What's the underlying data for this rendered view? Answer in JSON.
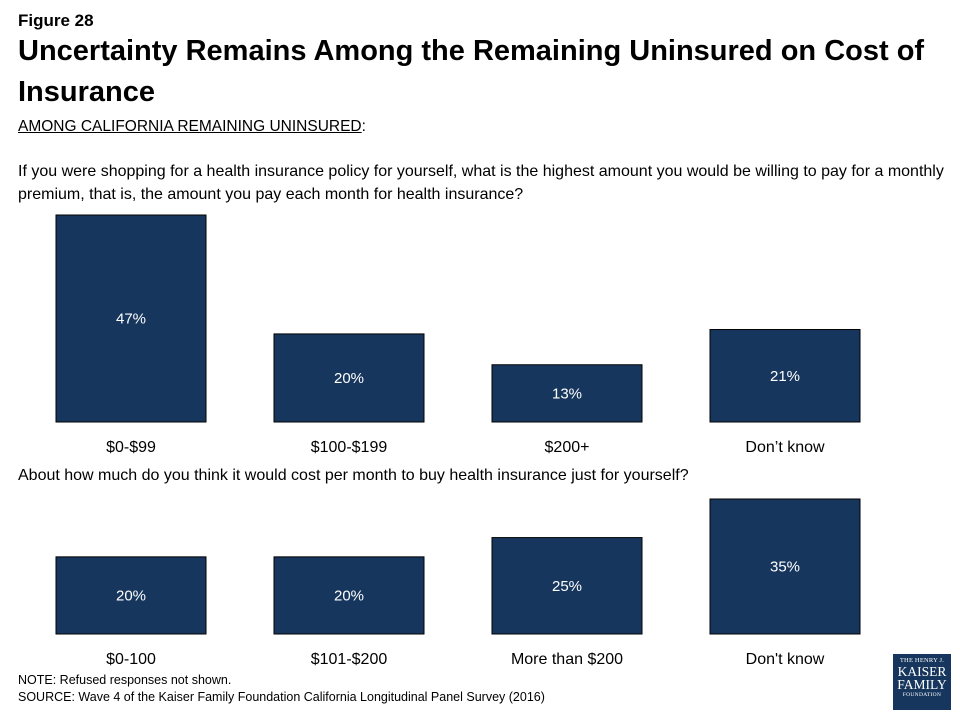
{
  "figure_label": "Figure 28",
  "title": "Uncertainty Remains Among the Remaining Uninsured on Cost of Insurance",
  "subtitle": {
    "text": "AMONG CALIFORNIA REMAINING UNINSURED",
    "suffix": ":"
  },
  "note": "NOTE: Refused responses not shown.",
  "source": "SOURCE: Wave 4 of the Kaiser Family Foundation California Longitudinal Panel Survey (2016)",
  "logo": {
    "line1": "THE HENRY J.",
    "line2a": "KAISER",
    "line2b": "FAMILY",
    "line3": "FOUNDATION"
  },
  "colors": {
    "bar": "#17365d",
    "bar_label": "#ffffff"
  },
  "chart_data": [
    {
      "type": "bar",
      "title": "If you were shopping for a health insurance policy for yourself, what is the highest amount you would be willing to pay for a monthly premium, that is, the amount you pay each month for health insurance?",
      "categories": [
        "$0-$99",
        "$100-$199",
        "$200+",
        "Don’t know"
      ],
      "values": [
        47,
        20,
        13,
        21
      ],
      "value_labels": [
        "47%",
        "20%",
        "13%",
        "21%"
      ],
      "unit": "%",
      "ylim": [
        0,
        47
      ],
      "grid": false
    },
    {
      "type": "bar",
      "title": "About how much do you think it would cost per month to buy health insurance just for yourself?",
      "categories": [
        "$0-100",
        "$101-$200",
        "More than $200",
        "Don't know"
      ],
      "values": [
        20,
        20,
        25,
        35
      ],
      "value_labels": [
        "20%",
        "20%",
        "25%",
        "35%"
      ],
      "unit": "%",
      "ylim": [
        0,
        35
      ],
      "grid": false
    }
  ]
}
